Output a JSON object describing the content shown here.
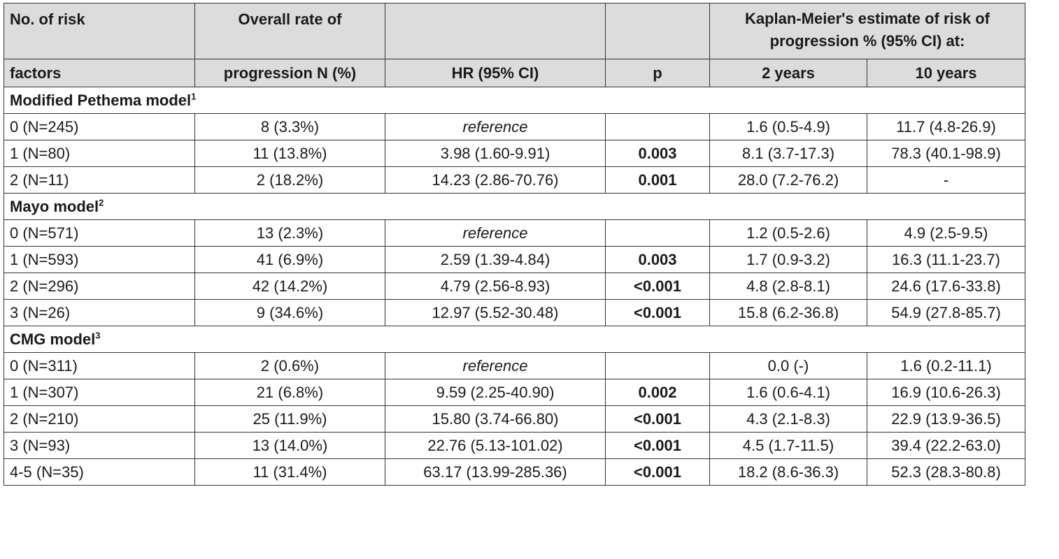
{
  "header": {
    "col1_line1": "No. of risk",
    "col1_line2": "factors",
    "col2_line1": "Overall rate of",
    "col2_line2": "progression N (%)",
    "col3": "HR (95% CI)",
    "col4": "p",
    "km_group": "Kaplan-Meier's estimate of risk of progression % (95% CI) at:",
    "col5": "2 years",
    "col6": "10 years"
  },
  "sections": [
    {
      "title": "Modified Pethema model",
      "sup": "1",
      "rows": [
        {
          "factors": "0 (N=245)",
          "rate": "8 (3.3%)",
          "hr": "reference",
          "p": "",
          "y2": "1.6 (0.5-4.9)",
          "y10": "11.7 (4.8-26.9)"
        },
        {
          "factors": "1 (N=80)",
          "rate": "11 (13.8%)",
          "hr": "3.98 (1.60-9.91)",
          "p": "0.003",
          "y2": "8.1 (3.7-17.3)",
          "y10": "78.3 (40.1-98.9)"
        },
        {
          "factors": "2 (N=11)",
          "rate": "2 (18.2%)",
          "hr": "14.23 (2.86-70.76)",
          "p": "0.001",
          "y2": "28.0 (7.2-76.2)",
          "y10": "-"
        }
      ]
    },
    {
      "title": "Mayo model",
      "sup": "2",
      "rows": [
        {
          "factors": "0 (N=571)",
          "rate": "13 (2.3%)",
          "hr": "reference",
          "p": "",
          "y2": "1.2 (0.5-2.6)",
          "y10": "4.9 (2.5-9.5)"
        },
        {
          "factors": "1 (N=593)",
          "rate": "41 (6.9%)",
          "hr": "2.59 (1.39-4.84)",
          "p": "0.003",
          "y2": "1.7 (0.9-3.2)",
          "y10": "16.3 (11.1-23.7)"
        },
        {
          "factors": "2 (N=296)",
          "rate": "42 (14.2%)",
          "hr": "4.79 (2.56-8.93)",
          "p": "<0.001",
          "y2": "4.8 (2.8-8.1)",
          "y10": "24.6 (17.6-33.8)"
        },
        {
          "factors": "3 (N=26)",
          "rate": "9 (34.6%)",
          "hr": "12.97 (5.52-30.48)",
          "p": "<0.001",
          "y2": "15.8 (6.2-36.8)",
          "y10": "54.9 (27.8-85.7)"
        }
      ]
    },
    {
      "title": "CMG model",
      "sup": "3",
      "rows": [
        {
          "factors": "0 (N=311)",
          "rate": "2 (0.6%)",
          "hr": "reference",
          "p": "",
          "y2": "0.0 (-)",
          "y10": "1.6 (0.2-11.1)"
        },
        {
          "factors": "1 (N=307)",
          "rate": "21 (6.8%)",
          "hr": "9.59 (2.25-40.90)",
          "p": "0.002",
          "y2": "1.6 (0.6-4.1)",
          "y10": "16.9 (10.6-26.3)"
        },
        {
          "factors": "2 (N=210)",
          "rate": "25 (11.9%)",
          "hr": "15.80 (3.74-66.80)",
          "p": "<0.001",
          "y2": "4.3 (2.1-8.3)",
          "y10": "22.9 (13.9-36.5)"
        },
        {
          "factors": "3 (N=93)",
          "rate": "13 (14.0%)",
          "hr": "22.76 (5.13-101.02)",
          "p": "<0.001",
          "y2": "4.5 (1.7-11.5)",
          "y10": "39.4 (22.2-63.0)"
        },
        {
          "factors": "4-5 (N=35)",
          "rate": "11 (31.4%)",
          "hr": "63.17 (13.99-285.36)",
          "p": "<0.001",
          "y2": "18.2 (8.6-36.3)",
          "y10": "52.3 (28.3-80.8)"
        }
      ]
    }
  ]
}
